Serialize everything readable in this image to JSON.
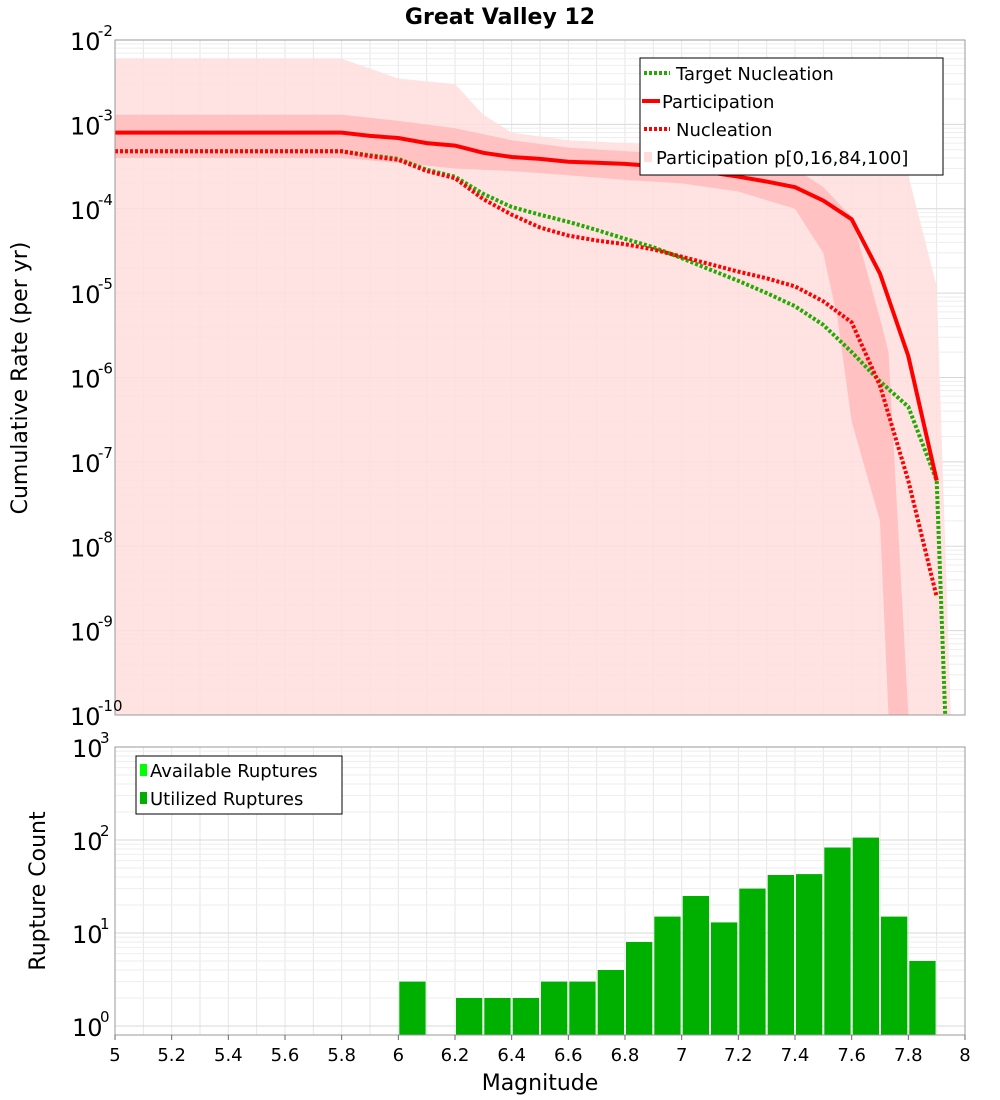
{
  "chart_data": [
    {
      "type": "line",
      "title": "Great Valley 12",
      "xlabel": "",
      "ylabel": "Cumulative Rate (per yr)",
      "xlim": [
        5,
        8
      ],
      "ylim": [
        1e-10,
        0.01
      ],
      "y_scale": "log",
      "grid": true,
      "legend": {
        "placement": "top-right",
        "entries": [
          {
            "label": "Target Nucleation",
            "color": "#22aa00",
            "style": "dotted"
          },
          {
            "label": "Participation",
            "color": "#ff0000",
            "style": "solid"
          },
          {
            "label": "Nucleation",
            "color": "#ff0000",
            "style": "dotted"
          },
          {
            "label": "Participation p[0,16,84,100]",
            "color": "#ffcccc",
            "style": "band"
          }
        ]
      },
      "series": [
        {
          "name": "Target Nucleation",
          "color": "#22aa00",
          "style": "dotted",
          "x": [
            5.0,
            5.1,
            5.2,
            5.3,
            5.4,
            5.5,
            5.6,
            5.7,
            5.8,
            5.9,
            6.0,
            6.1,
            6.2,
            6.3,
            6.4,
            6.5,
            6.6,
            6.7,
            6.8,
            6.9,
            7.0,
            7.1,
            7.2,
            7.3,
            7.4,
            7.5,
            7.6,
            7.7,
            7.8,
            7.9,
            7.93
          ],
          "y": [
            0.00048,
            0.00048,
            0.00048,
            0.00048,
            0.00048,
            0.00048,
            0.00048,
            0.00048,
            0.00048,
            0.00043,
            0.00039,
            0.00029,
            0.00024,
            0.00015,
            0.000105,
            8.5e-05,
            7e-05,
            5.6e-05,
            4.4e-05,
            3.5e-05,
            2.6e-05,
            1.9e-05,
            1.4e-05,
            1e-05,
            7e-06,
            4.2e-06,
            2e-06,
            9e-07,
            4.5e-07,
            6e-08,
            1e-10
          ]
        },
        {
          "name": "Participation",
          "color": "#ff0000",
          "style": "solid",
          "x": [
            5.0,
            5.1,
            5.2,
            5.3,
            5.4,
            5.5,
            5.6,
            5.7,
            5.8,
            5.9,
            6.0,
            6.1,
            6.2,
            6.3,
            6.4,
            6.5,
            6.6,
            6.7,
            6.8,
            6.9,
            7.0,
            7.1,
            7.2,
            7.3,
            7.4,
            7.5,
            7.6,
            7.7,
            7.8,
            7.9
          ],
          "y": [
            0.0008,
            0.0008,
            0.0008,
            0.0008,
            0.0008,
            0.0008,
            0.0008,
            0.0008,
            0.0008,
            0.00073,
            0.00069,
            0.0006,
            0.00056,
            0.00046,
            0.00041,
            0.00039,
            0.00036,
            0.00035,
            0.00034,
            0.00032,
            0.00029,
            0.00027,
            0.00024,
            0.00021,
            0.00018,
            0.000125,
            7.5e-05,
            1.7e-05,
            1.8e-06,
            6e-08
          ]
        },
        {
          "name": "Nucleation",
          "color": "#ff0000",
          "style": "dotted",
          "x": [
            5.0,
            5.1,
            5.2,
            5.3,
            5.4,
            5.5,
            5.6,
            5.7,
            5.8,
            5.9,
            6.0,
            6.1,
            6.2,
            6.3,
            6.4,
            6.5,
            6.6,
            6.7,
            6.8,
            6.9,
            7.0,
            7.1,
            7.2,
            7.3,
            7.4,
            7.5,
            7.6,
            7.7,
            7.8,
            7.9
          ],
          "y": [
            0.00048,
            0.00048,
            0.00048,
            0.00048,
            0.00048,
            0.00048,
            0.00048,
            0.00048,
            0.00048,
            0.00042,
            0.00038,
            0.00028,
            0.00023,
            0.00013,
            8.5e-05,
            6e-05,
            4.8e-05,
            4.2e-05,
            3.8e-05,
            3.3e-05,
            2.7e-05,
            2.2e-05,
            1.8e-05,
            1.5e-05,
            1.2e-05,
            8e-06,
            4.5e-06,
            8e-07,
            6e-08,
            2.5e-09
          ]
        }
      ],
      "bands": [
        {
          "name": "p0-100",
          "color": "#ffdddd",
          "x": [
            5.0,
            5.8,
            6.0,
            6.2,
            6.3,
            6.4,
            6.6,
            6.8,
            7.0,
            7.2,
            7.4,
            7.6,
            7.7,
            7.8,
            7.9,
            7.95
          ],
          "upper": [
            0.006,
            0.006,
            0.0035,
            0.003,
            0.0013,
            0.0008,
            0.00065,
            0.0006,
            0.00055,
            0.00055,
            0.0005,
            0.0004,
            0.00035,
            0.00025,
            1.2e-05,
            1e-10
          ],
          "lower": [
            1e-10,
            1e-10,
            1e-10,
            1e-10,
            1e-10,
            1e-10,
            1e-10,
            1e-10,
            1e-10,
            1e-10,
            1e-10,
            1e-10,
            1e-10,
            1e-10,
            1e-10,
            1e-10
          ]
        },
        {
          "name": "p16-84",
          "color": "#ffbbbb",
          "x": [
            5.0,
            5.8,
            6.0,
            6.2,
            6.4,
            6.6,
            6.8,
            7.0,
            7.2,
            7.4,
            7.5,
            7.55,
            7.6,
            7.7,
            7.73,
            7.8,
            7.83
          ],
          "upper": [
            0.0013,
            0.0013,
            0.0011,
            0.0009,
            0.00065,
            0.00053,
            0.00048,
            0.00045,
            0.00038,
            0.0003,
            0.00018,
            0.00012,
            8e-05,
            5e-06,
            2e-06,
            1e-10,
            1e-10
          ],
          "lower": [
            0.0004,
            0.0004,
            0.00035,
            0.0003,
            0.00028,
            0.00025,
            0.00022,
            0.0002,
            0.00016,
            0.0001,
            3e-05,
            5e-06,
            3e-07,
            2e-08,
            1e-10,
            1e-10,
            1e-10
          ]
        }
      ]
    },
    {
      "type": "bar",
      "title": "",
      "xlabel": "Magnitude",
      "ylabel": "Rupture Count",
      "xlim": [
        5,
        8
      ],
      "ylim": [
        0.8,
        1000
      ],
      "y_scale": "log",
      "grid": true,
      "legend": {
        "placement": "top-left",
        "entries": [
          {
            "label": "Available Ruptures",
            "color": "#00ff00"
          },
          {
            "label": "Utilized Ruptures",
            "color": "#00b000"
          }
        ]
      },
      "x_ticks": [
        "5",
        "5.2",
        "5.4",
        "5.6",
        "5.8",
        "6",
        "6.2",
        "6.4",
        "6.6",
        "6.8",
        "7",
        "7.2",
        "7.4",
        "7.6",
        "7.8",
        "8"
      ],
      "series": [
        {
          "name": "Utilized Ruptures",
          "color": "#00b000",
          "bin_width": 0.1,
          "x": [
            6.05,
            6.25,
            6.35,
            6.45,
            6.55,
            6.65,
            6.75,
            6.85,
            6.95,
            7.05,
            7.15,
            7.25,
            7.35,
            7.45,
            7.55,
            7.65,
            7.75,
            7.85
          ],
          "values": [
            3,
            2,
            2,
            2,
            3,
            3,
            4,
            8,
            15,
            25,
            13,
            30,
            42,
            43,
            83,
            106,
            15,
            5
          ]
        }
      ]
    }
  ]
}
